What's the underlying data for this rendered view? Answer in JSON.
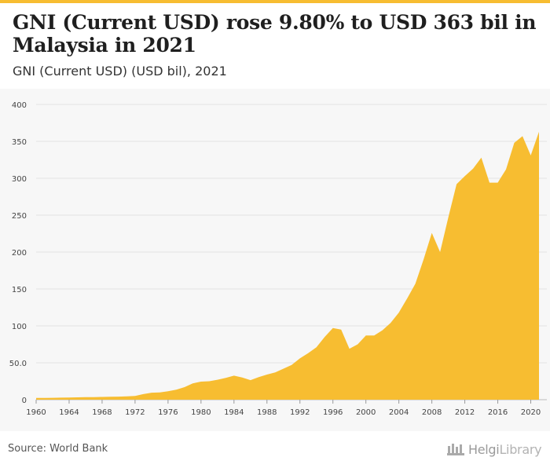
{
  "header": {
    "title": "GNI (Current USD) rose 9.80% to USD 363 bil in Malaysia in 2021",
    "subtitle": "GNI (Current USD) (USD bil), 2021"
  },
  "footer": {
    "source": "Source: World Bank",
    "logo_brand": "Helgi",
    "logo_suffix": "Library"
  },
  "colors": {
    "accent": "#f7bd31",
    "grid": "#e3e3e3",
    "background": "#f7f7f7"
  },
  "chart_data": {
    "type": "area",
    "x": [
      1960,
      1961,
      1962,
      1963,
      1964,
      1965,
      1966,
      1967,
      1968,
      1969,
      1970,
      1971,
      1972,
      1973,
      1974,
      1975,
      1976,
      1977,
      1978,
      1979,
      1980,
      1981,
      1982,
      1983,
      1984,
      1985,
      1986,
      1987,
      1988,
      1989,
      1990,
      1991,
      1992,
      1993,
      1994,
      1995,
      1996,
      1997,
      1998,
      1999,
      2000,
      2001,
      2002,
      2003,
      2004,
      2005,
      2006,
      2007,
      2008,
      2009,
      2010,
      2011,
      2012,
      2013,
      2014,
      2015,
      2016,
      2017,
      2018,
      2019,
      2020,
      2021
    ],
    "series": [
      {
        "values": [
          2.3,
          2.4,
          2.5,
          2.8,
          3.0,
          3.2,
          3.4,
          3.5,
          3.7,
          4.0,
          4.2,
          4.5,
          5.0,
          7.5,
          9.5,
          9.8,
          11.5,
          13.5,
          17.0,
          22.0,
          24.5,
          25.0,
          27.0,
          29.5,
          32.5,
          30.0,
          26.5,
          30.5,
          34.0,
          37.0,
          42.0,
          47.0,
          56.0,
          63.0,
          71.0,
          85.0,
          97.0,
          95.0,
          69.0,
          75.0,
          87.0,
          87.0,
          94.0,
          104.0,
          118.0,
          137.0,
          157.0,
          190.0,
          226.0,
          200.0,
          247.0,
          292.0,
          303.0,
          313.0,
          328.0,
          294.0,
          294.0,
          312.0,
          348.0,
          357.0,
          331.0,
          363.0
        ]
      }
    ],
    "y_ticks": [
      "0",
      "50.0",
      "100",
      "150",
      "200",
      "250",
      "300",
      "350",
      "400"
    ],
    "x_ticks": [
      "1960",
      "1964",
      "1968",
      "1972",
      "1976",
      "1980",
      "1984",
      "1988",
      "1992",
      "1996",
      "2000",
      "2004",
      "2008",
      "2012",
      "2016",
      "2020"
    ],
    "ylim": [
      0,
      400
    ],
    "xlim": [
      1960,
      2021
    ],
    "grid": true
  }
}
